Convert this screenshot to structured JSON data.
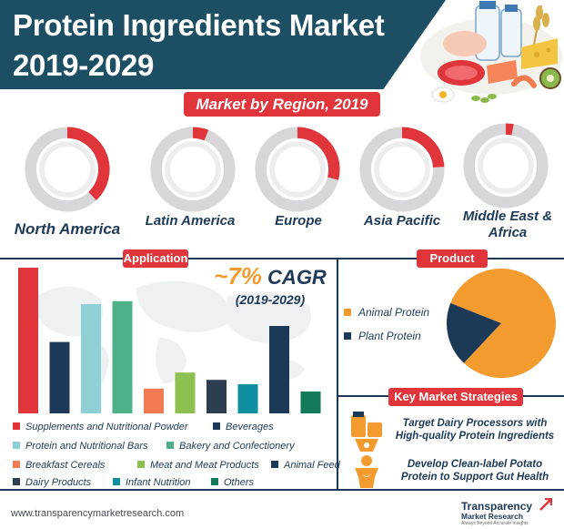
{
  "header": {
    "title_line1": "Protein Ingredients Market",
    "title_line2": "2019-2029"
  },
  "region_section": {
    "heading": "Market by Region, 2019"
  },
  "sections": {
    "application": "Application",
    "product": "Product",
    "strategies": "Key Market Strategies"
  },
  "cagr": {
    "value": "~7%",
    "label": "CAGR",
    "period": "(2019-2029)"
  },
  "strategies": [
    {
      "text": "Target Dairy Processors with High-quality Protein Ingredients",
      "icon": "dairy-processor-icon"
    },
    {
      "text": "Develop Clean-label Potato Protein to Support Gut Health",
      "icon": "person-gut-icon"
    }
  ],
  "footer": {
    "url": "www.transparencymarketresearch.com",
    "logo_name": "Transparency",
    "logo_sub": "Market Research",
    "logo_tag": "Always Beyond Accurate Insights"
  },
  "colors": {
    "dark_blue": "#1c3a57",
    "teal_title": "#1c4f63",
    "red": "#e0353b",
    "orange": "#f39b2f"
  },
  "chart_data": [
    {
      "type": "donut",
      "title": "Market by Region, 2019",
      "series": [
        {
          "name": "North America",
          "share": 0.38
        },
        {
          "name": "Latin America",
          "share": 0.06
        },
        {
          "name": "Europe",
          "share": 0.29
        },
        {
          "name": "Asia Pacific",
          "share": 0.24
        },
        {
          "name": "Middle East & Africa",
          "share": 0.03
        }
      ]
    },
    {
      "type": "bar",
      "title": "Application",
      "categories": [
        "Supplements and Nutritional Powder",
        "Beverages",
        "Protein and Nutritional Bars",
        "Bakery and Confectionery",
        "Breakfast Cereals",
        "Meat and Meat Products",
        "Animal Feed",
        "Dairy Products",
        "Infant Nutrition",
        "Others"
      ],
      "values": [
        100,
        49,
        75,
        77,
        17,
        28,
        60,
        23,
        20,
        15
      ],
      "colors": [
        "#e0353b",
        "#1c3a57",
        "#8fd0d6",
        "#4fb18a",
        "#f07a52",
        "#8cc152",
        "#1c3a57",
        "#2c3e50",
        "#0f8fa0",
        "#127a5b"
      ],
      "bar_order": [
        0,
        1,
        2,
        3,
        4,
        5,
        7,
        8,
        6,
        9
      ],
      "legend_order": [
        0,
        1,
        2,
        3,
        4,
        5,
        6,
        7,
        8,
        9
      ]
    },
    {
      "type": "pie",
      "title": "Product",
      "series": [
        {
          "name": "Animal Protein",
          "share": 0.81,
          "color": "#f39b2f"
        },
        {
          "name": "Plant Protein",
          "share": 0.19,
          "color": "#1c3a57"
        }
      ]
    }
  ]
}
